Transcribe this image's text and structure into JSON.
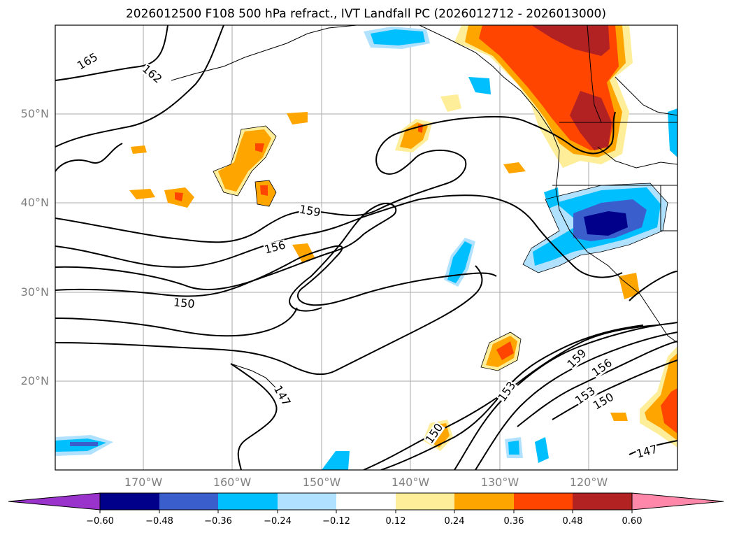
{
  "title": "2026012500 F108 500 hPa refract., IVT Landfall PC (2026012712 - 2026013000)",
  "map": {
    "lat_labels": [
      "50°N",
      "40°N",
      "30°N",
      "20°N"
    ],
    "lon_labels": [
      "170°W",
      "160°W",
      "150°W",
      "140°W",
      "130°W",
      "120°W"
    ],
    "contour_labels": [
      "165",
      "162",
      "159",
      "156",
      "150",
      "147",
      "153",
      "159",
      "156",
      "153",
      "150",
      "150",
      "147"
    ]
  },
  "colorbar": {
    "ticks": [
      "−0.60",
      "−0.48",
      "−0.36",
      "−0.24",
      "−0.12",
      "0.12",
      "0.24",
      "0.36",
      "0.48",
      "0.60"
    ],
    "colors": [
      "#9933cc",
      "#00008b",
      "#3a5fcd",
      "#00bfff",
      "#b0e2ff",
      "#ffffff",
      "#ffee99",
      "#ffa500",
      "#ff4500",
      "#b22222",
      "#ff88aa"
    ]
  }
}
